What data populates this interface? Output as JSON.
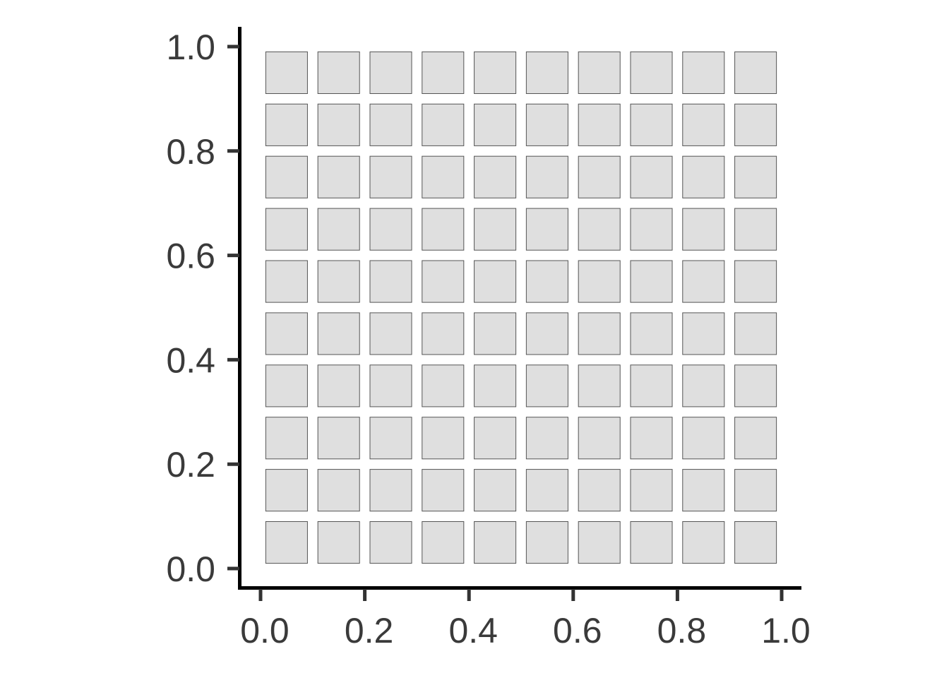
{
  "chart_data": {
    "type": "heatmap",
    "title": "",
    "xlabel": "",
    "ylabel": "",
    "xlim": [
      0,
      1
    ],
    "ylim": [
      0,
      1
    ],
    "x_ticks": [
      "0.0",
      "0.2",
      "0.4",
      "0.6",
      "0.8",
      "1.0"
    ],
    "y_ticks": [
      "0.0",
      "0.2",
      "0.4",
      "0.6",
      "0.8",
      "1.0"
    ],
    "tile_x_centers": [
      0.05,
      0.15,
      0.25,
      0.35,
      0.45,
      0.55,
      0.65,
      0.75,
      0.85,
      0.95
    ],
    "tile_y_centers": [
      0.05,
      0.15,
      0.25,
      0.35,
      0.45,
      0.55,
      0.65,
      0.75,
      0.85,
      0.95
    ],
    "tile_width": 0.08,
    "tile_height": 0.08,
    "grid": false,
    "legend": "none",
    "colors": {
      "tile_fill": "#dfdfdf",
      "tile_stroke": "#555555",
      "axis": "#000000",
      "text": "#3a3a3a"
    }
  }
}
